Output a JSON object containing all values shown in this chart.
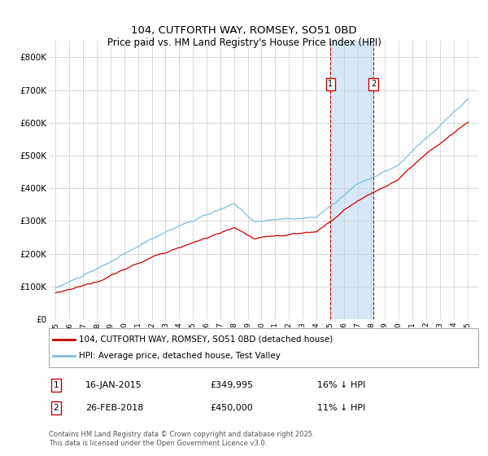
{
  "title": "104, CUTFORTH WAY, ROMSEY, SO51 0BD",
  "subtitle": "Price paid vs. HM Land Registry's House Price Index (HPI)",
  "legend_line1": "104, CUTFORTH WAY, ROMSEY, SO51 0BD (detached house)",
  "legend_line2": "HPI: Average price, detached house, Test Valley",
  "annotation1_label": "1",
  "annotation1_date": "16-JAN-2015",
  "annotation1_price": "£349,995",
  "annotation1_hpi": "16% ↓ HPI",
  "annotation2_label": "2",
  "annotation2_date": "26-FEB-2018",
  "annotation2_price": "£450,000",
  "annotation2_hpi": "11% ↓ HPI",
  "vline1_x": 2015.04,
  "vline2_x": 2018.15,
  "ylim_min": 0,
  "ylim_max": 850000,
  "xlim_min": 1994.5,
  "xlim_max": 2025.8,
  "hpi_color": "#7bbfdf",
  "price_color": "#cc0000",
  "vline_color": "#cc0000",
  "shade_color": "#d6e8f5",
  "footnote": "Contains HM Land Registry data © Crown copyright and database right 2025.\nThis data is licensed under the Open Government Licence v3.0.",
  "yticks": [
    0,
    100000,
    200000,
    300000,
    400000,
    500000,
    600000,
    700000,
    800000
  ],
  "ytick_labels": [
    "£0",
    "£100K",
    "£200K",
    "£300K",
    "£400K",
    "£500K",
    "£600K",
    "£700K",
    "£800K"
  ],
  "xticks": [
    1995,
    1996,
    1997,
    1998,
    1999,
    2000,
    2001,
    2002,
    2003,
    2004,
    2005,
    2006,
    2007,
    2008,
    2009,
    2010,
    2011,
    2012,
    2013,
    2014,
    2015,
    2016,
    2017,
    2018,
    2019,
    2020,
    2021,
    2022,
    2023,
    2024,
    2025
  ]
}
